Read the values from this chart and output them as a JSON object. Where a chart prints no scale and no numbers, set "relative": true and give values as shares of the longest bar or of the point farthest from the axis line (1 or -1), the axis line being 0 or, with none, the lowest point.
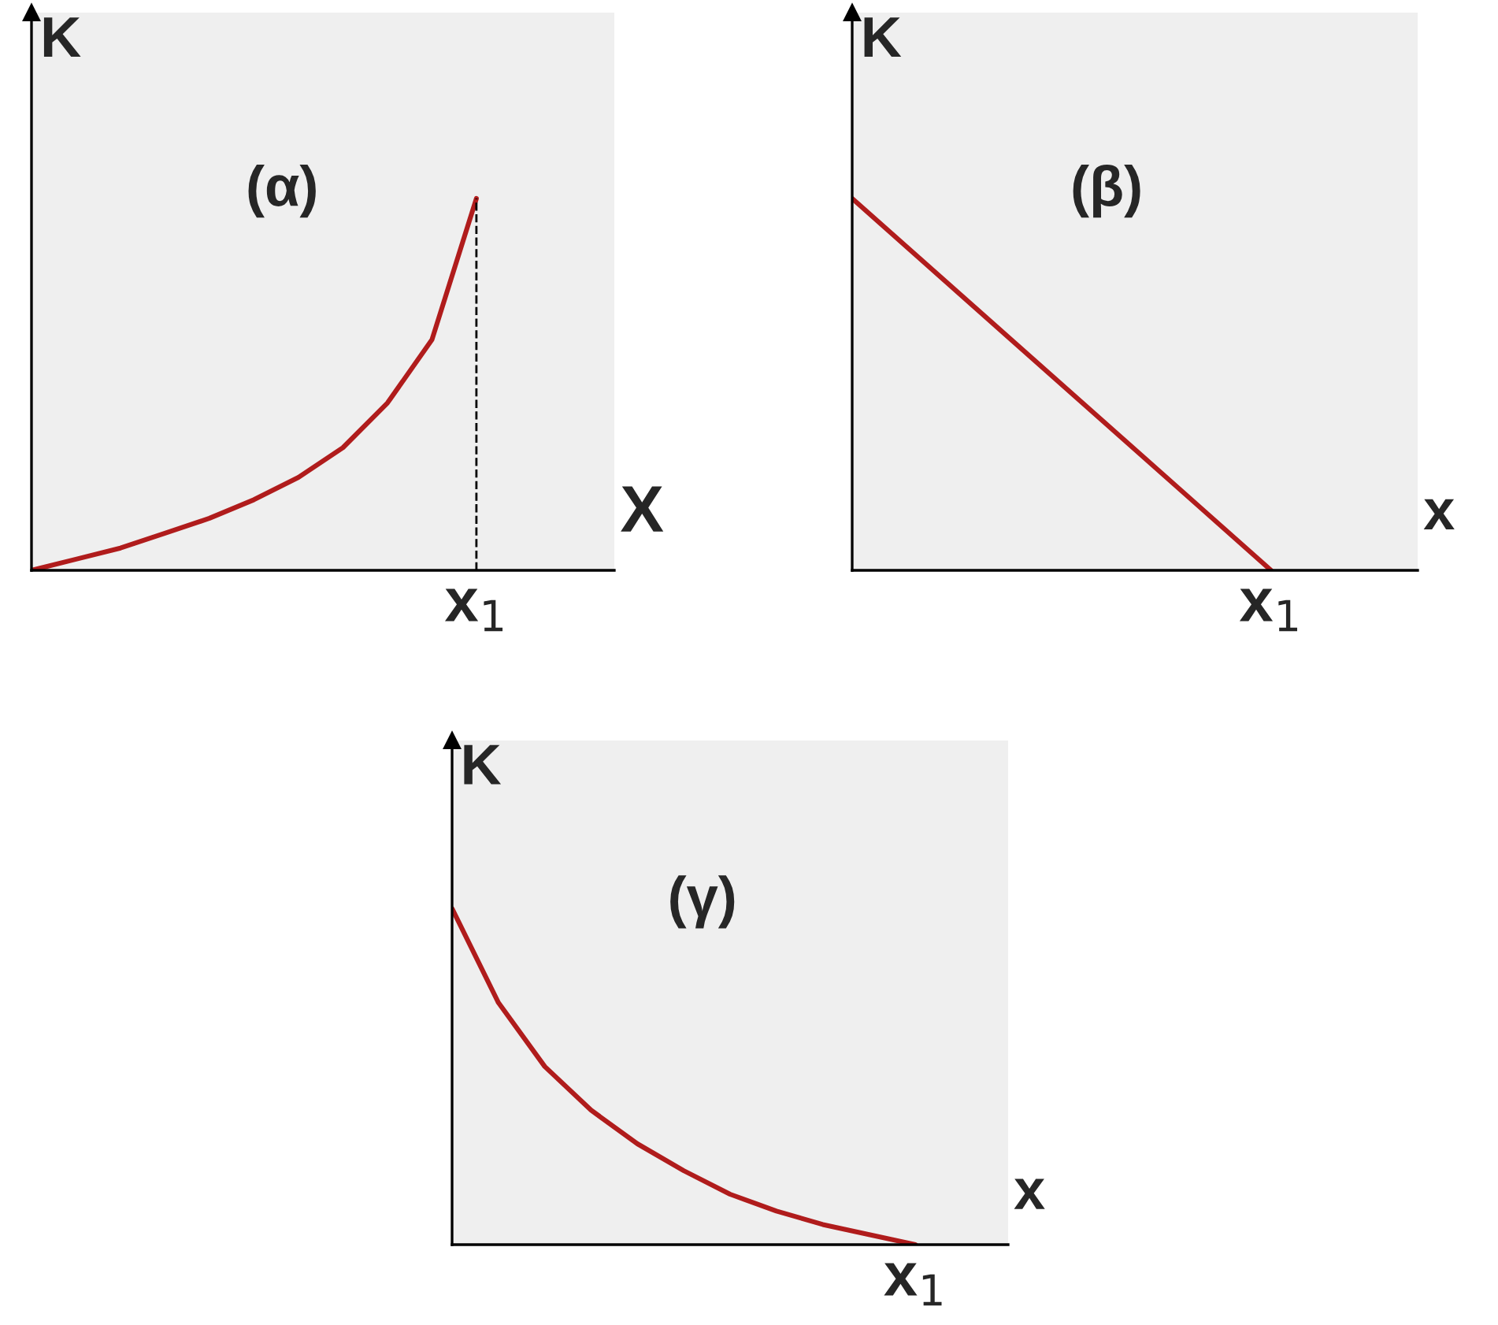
{
  "chart_data": [
    {
      "type": "line",
      "relative": true,
      "title": "(α)",
      "xlabel": "X",
      "ylabel": "K",
      "color": "#b01c1c",
      "categories": [
        null,
        null,
        null,
        null,
        null,
        null,
        null,
        null,
        null,
        null,
        null
      ],
      "values": [
        0,
        0.03,
        0.06,
        0.1,
        0.14,
        0.19,
        0.25,
        0.33,
        0.45,
        0.62,
        1.0
      ],
      "annotations": [
        "x$_{1}$"
      ]
    },
    {
      "type": "line",
      "relative": true,
      "title": "(β)",
      "xlabel": "x",
      "ylabel": "K",
      "color": "#b01c1c",
      "categories": [
        null,
        null
      ],
      "values": [
        1.0,
        0
      ],
      "annotations": [
        "x$_{1}$"
      ]
    },
    {
      "type": "line",
      "relative": true,
      "title": "(γ)",
      "xlabel": "x",
      "ylabel": "K",
      "color": "#b01c1c",
      "categories": [
        null,
        null,
        null,
        null,
        null,
        null,
        null,
        null,
        null,
        null,
        null
      ],
      "values": [
        1.0,
        0.72,
        0.53,
        0.4,
        0.3,
        0.22,
        0.15,
        0.1,
        0.06,
        0.03,
        0.0
      ],
      "annotations": [
        "x$_{1}$"
      ]
    }
  ]
}
